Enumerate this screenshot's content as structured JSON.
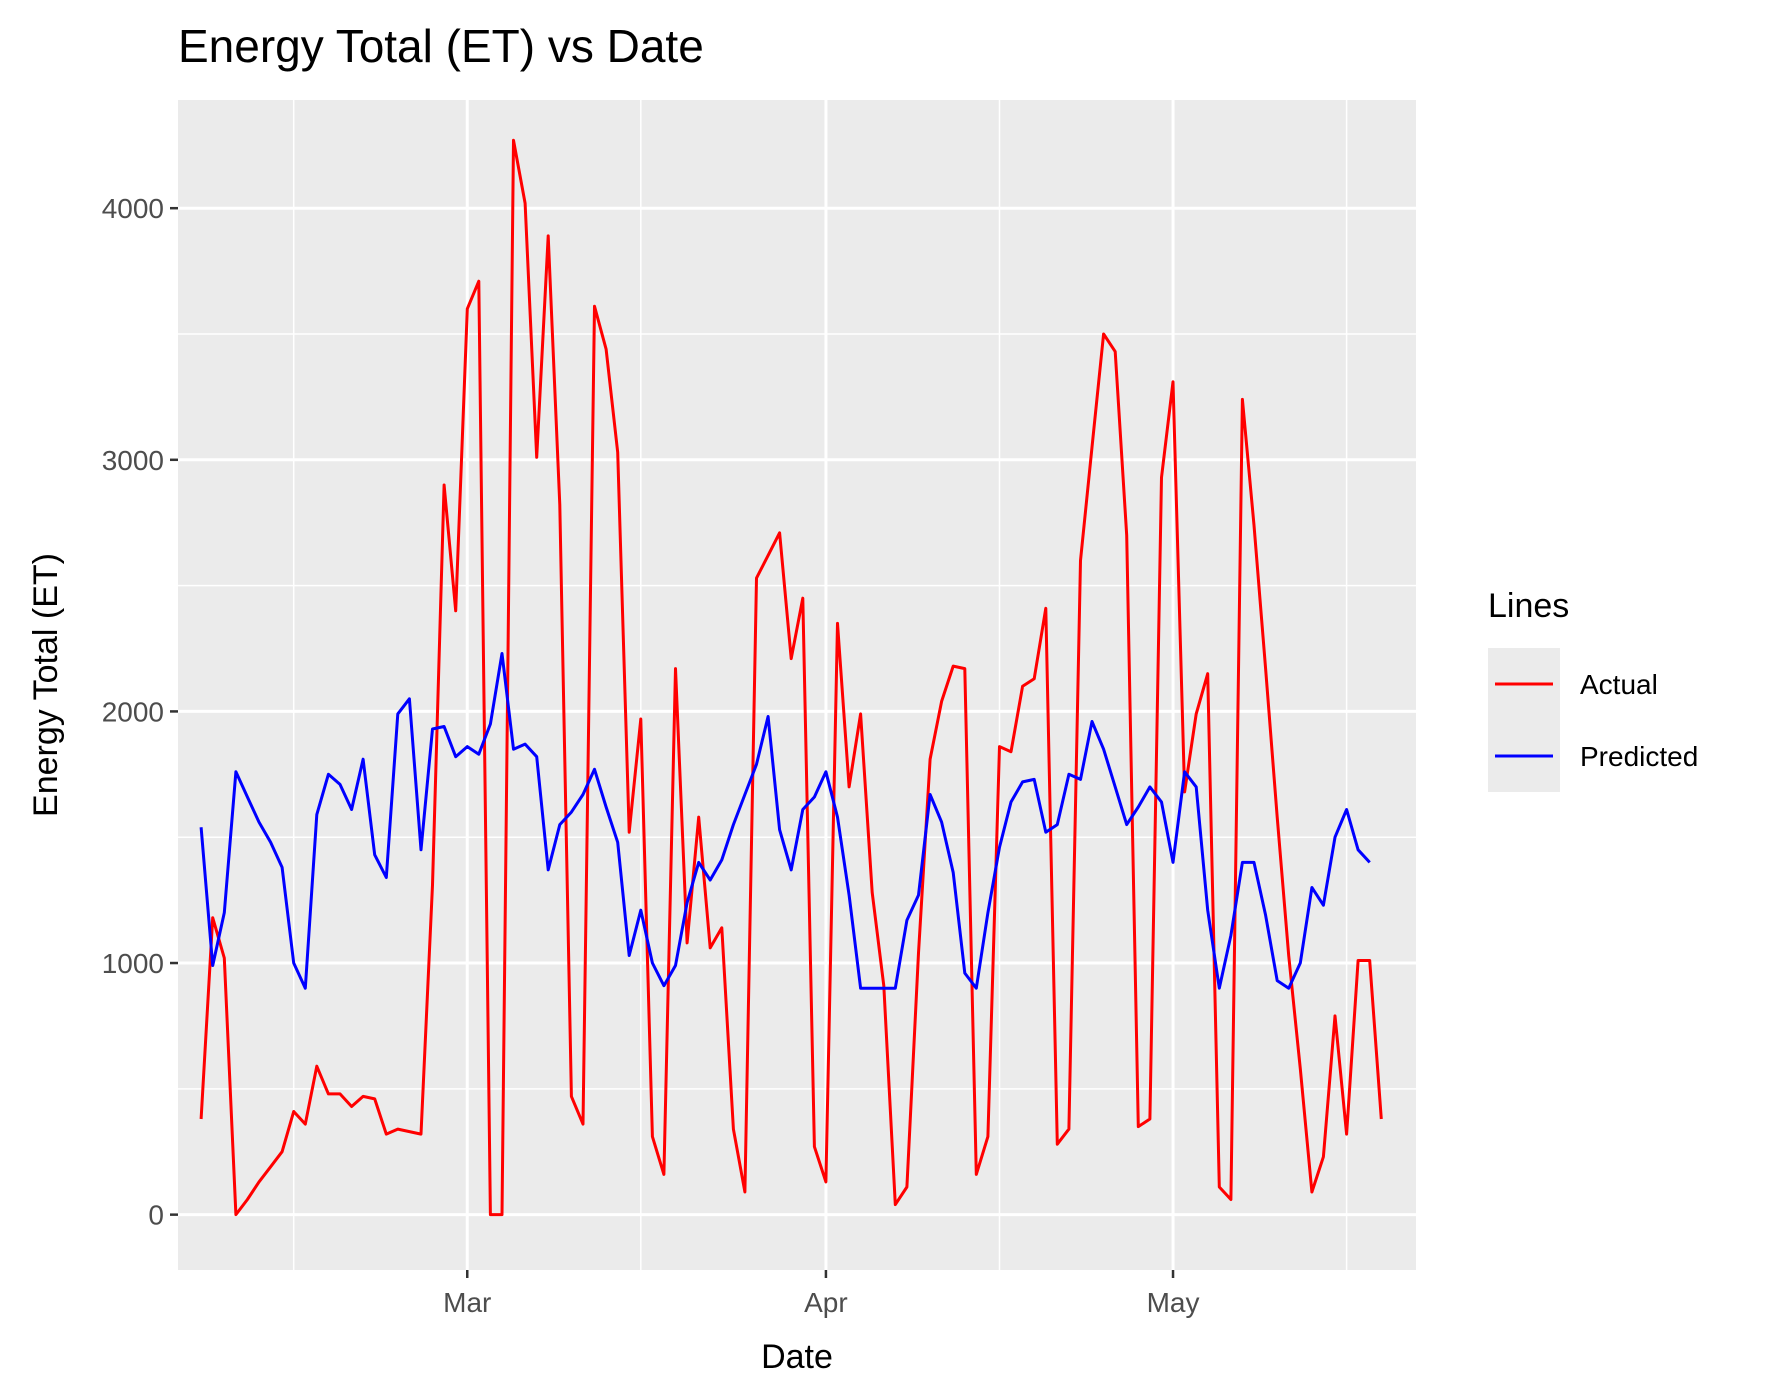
{
  "chart_data": {
    "type": "line",
    "title": "Energy Total (ET) vs Date",
    "xlabel": "Date",
    "ylabel": "Energy Total (ET)",
    "x_start": "2024-02-07",
    "xlim": [
      "2024-02-05",
      "2024-05-22"
    ],
    "ylim": [
      -220,
      4430
    ],
    "y_ticks": [
      0,
      1000,
      2000,
      3000,
      4000
    ],
    "x_ticks": [
      {
        "date": "2024-03-01",
        "label": "Mar"
      },
      {
        "date": "2024-04-01",
        "label": "Apr"
      },
      {
        "date": "2024-05-01",
        "label": "May"
      }
    ],
    "x_minor_ticks": [
      "2024-02-15",
      "2024-03-16",
      "2024-04-16",
      "2024-05-16"
    ],
    "grid": true,
    "legend": {
      "title": "Lines",
      "position": "right"
    },
    "series": [
      {
        "name": "Actual",
        "color": "#ff0000",
        "values": [
          380,
          1180,
          1020,
          0,
          60,
          130,
          190,
          250,
          410,
          360,
          590,
          480,
          480,
          430,
          470,
          460,
          320,
          340,
          330,
          320,
          1310,
          2900,
          2400,
          3600,
          3710,
          0,
          0,
          4270,
          4020,
          3010,
          3890,
          2820,
          470,
          360,
          3610,
          3440,
          3030,
          1520,
          1970,
          310,
          160,
          2170,
          1080,
          1580,
          1060,
          1140,
          340,
          90,
          2530,
          2620,
          2710,
          2210,
          2450,
          270,
          130,
          2350,
          1700,
          1990,
          1280,
          910,
          40,
          110,
          1040,
          1810,
          2040,
          2180,
          2170,
          160,
          310,
          1860,
          1840,
          2100,
          2130,
          2410,
          280,
          340,
          2600,
          3050,
          3500,
          3430,
          2700,
          350,
          380,
          2930,
          3310,
          1680,
          1990,
          2150,
          110,
          60,
          3240,
          2740,
          2170,
          1580,
          1030,
          580,
          90,
          230,
          790,
          320,
          1010,
          1010,
          380
        ]
      },
      {
        "name": "Predicted",
        "color": "#0000ff",
        "values": [
          1540,
          990,
          1200,
          1760,
          1660,
          1560,
          1480,
          1380,
          1000,
          900,
          1590,
          1750,
          1710,
          1610,
          1810,
          1430,
          1340,
          1990,
          2050,
          1450,
          1930,
          1940,
          1820,
          1860,
          1830,
          1950,
          2230,
          1850,
          1870,
          1820,
          1370,
          1550,
          1600,
          1670,
          1770,
          1620,
          1480,
          1030,
          1210,
          1000,
          910,
          990,
          1240,
          1400,
          1330,
          1410,
          1550,
          1670,
          1790,
          1980,
          1530,
          1370,
          1610,
          1660,
          1760,
          1580,
          1270,
          900,
          900,
          900,
          900,
          1170,
          1270,
          1670,
          1560,
          1360,
          960,
          900,
          1200,
          1460,
          1640,
          1720,
          1730,
          1520,
          1550,
          1750,
          1730,
          1960,
          1850,
          1700,
          1550,
          1620,
          1700,
          1640,
          1400,
          1760,
          1700,
          1210,
          900,
          1110,
          1400,
          1400,
          1190,
          930,
          900,
          1000,
          1300,
          1230,
          1500,
          1610,
          1450,
          1400
        ]
      }
    ]
  }
}
